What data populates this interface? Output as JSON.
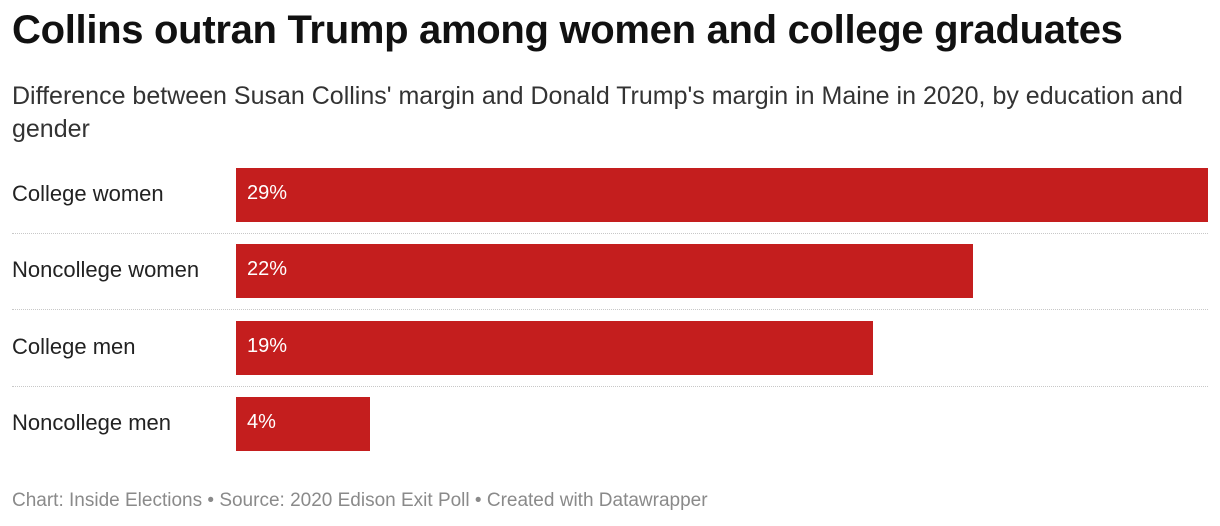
{
  "chart_data": {
    "type": "bar",
    "orientation": "horizontal",
    "title": "Collins outran Trump among women and college graduates",
    "subtitle": "Difference between Susan Collins' margin and Donald Trump's margin in Maine in 2020, by education and gender",
    "categories": [
      "College women",
      "Noncollege women",
      "College men",
      "Noncollege men"
    ],
    "values": [
      29,
      22,
      19,
      4
    ],
    "value_labels": [
      "29%",
      "22%",
      "19%",
      "4%"
    ],
    "unit": "%",
    "xlim": [
      0,
      29
    ],
    "bar_color": "#c41e1e",
    "grid": false,
    "footer": {
      "credit": "Chart: Inside Elections",
      "source": "Source: 2020 Edison Exit Poll",
      "tool": "Created with Datawrapper",
      "separator": "•"
    }
  }
}
